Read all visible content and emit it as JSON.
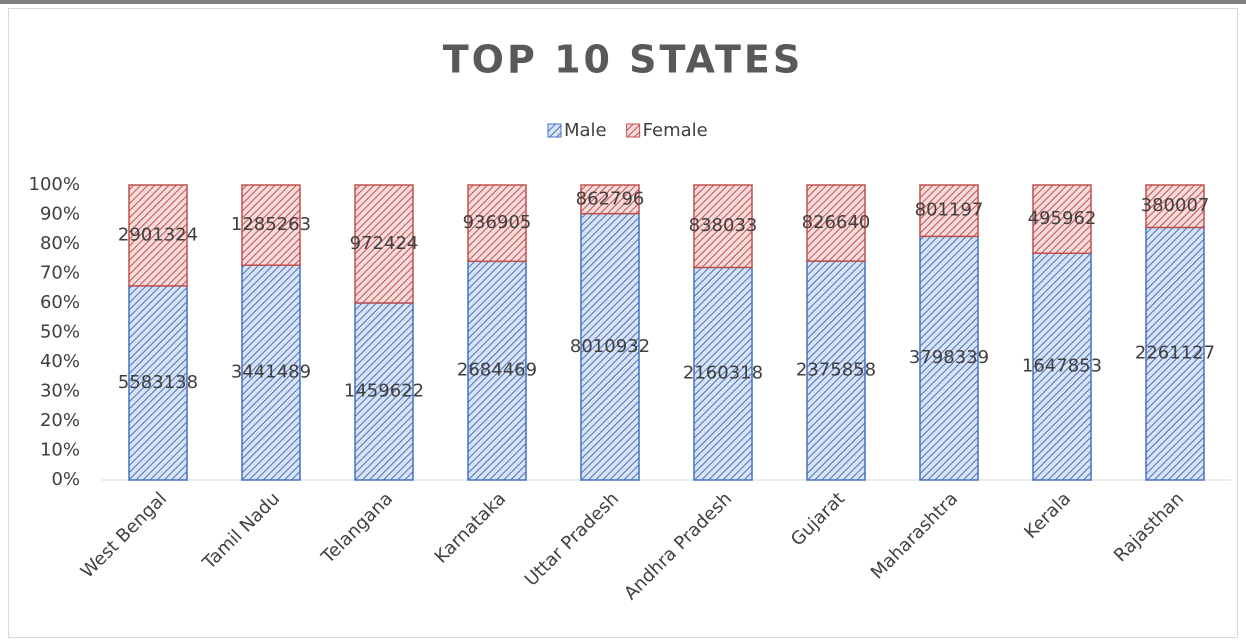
{
  "chart_data": {
    "type": "bar",
    "stack": "percent",
    "title": "TOP 10 STATES",
    "categories": [
      "West Bengal",
      "Tamil Nadu",
      "Telangana",
      "Karnataka",
      "Uttar Pradesh",
      "Andhra Pradesh",
      "Gujarat",
      "Maharashtra",
      "Kerala",
      "Rajasthan"
    ],
    "series": [
      {
        "name": "Male",
        "color": "#4472c4",
        "values": [
          5583138,
          3441489,
          1459622,
          2684469,
          8010932,
          2160318,
          2375858,
          3798339,
          1647853,
          2261127
        ]
      },
      {
        "name": "Female",
        "color": "#c0504d",
        "values": [
          2901324,
          1285263,
          972424,
          936905,
          862796,
          838033,
          826640,
          801197,
          495962,
          380007
        ]
      }
    ],
    "ylim": [
      0,
      100
    ],
    "yticks": [
      {
        "value": 0,
        "label": "0%"
      },
      {
        "value": 10,
        "label": "10%"
      },
      {
        "value": 20,
        "label": "20%"
      },
      {
        "value": 30,
        "label": "30%"
      },
      {
        "value": 40,
        "label": "40%"
      },
      {
        "value": 50,
        "label": "50%"
      },
      {
        "value": 60,
        "label": "60%"
      },
      {
        "value": 70,
        "label": "70%"
      },
      {
        "value": 80,
        "label": "80%"
      },
      {
        "value": 90,
        "label": "90%"
      },
      {
        "value": 100,
        "label": "100%"
      }
    ],
    "legend": "top"
  }
}
